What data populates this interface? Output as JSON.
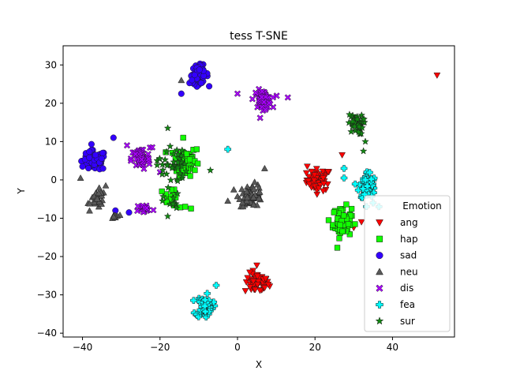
{
  "chart_data": {
    "type": "scatter",
    "title": "tess T-SNE",
    "xlabel": "X",
    "ylabel": "Y",
    "xlim": [
      -45,
      56
    ],
    "ylim": [
      -41,
      35
    ],
    "xticks": [
      -40,
      -20,
      0,
      20,
      40
    ],
    "yticks": [
      -40,
      -30,
      -20,
      -10,
      0,
      10,
      20,
      30
    ],
    "grid": false,
    "legend": {
      "title": "Emotion",
      "placement": "lower-right"
    },
    "series": [
      {
        "name": "ang",
        "marker": "triangle-down",
        "color": "#ff0000",
        "clusters": [
          {
            "center": [
              21,
              0
            ],
            "spread": [
              2.6,
              2.4
            ],
            "count": 60
          },
          {
            "center": [
              5,
              -27
            ],
            "spread": [
              2.6,
              2.2
            ],
            "count": 55
          }
        ],
        "points": [
          [
            51.5,
            27.3
          ],
          [
            5,
            -22.3
          ],
          [
            27,
            6.5
          ],
          [
            30,
            -12.5
          ],
          [
            32,
            -11
          ],
          [
            18,
            3.5
          ]
        ]
      },
      {
        "name": "hap",
        "marker": "square",
        "color": "#11ff00",
        "clusters": [
          {
            "center": [
              -13.5,
              5
            ],
            "spread": [
              2.4,
              3.2
            ],
            "count": 75
          },
          {
            "center": [
              -17,
              -5
            ],
            "spread": [
              1.4,
              1.8
            ],
            "count": 18
          },
          {
            "center": [
              27,
              -11
            ],
            "spread": [
              2.0,
              3.3
            ],
            "count": 75
          }
        ],
        "points": [
          [
            -14,
            11
          ],
          [
            -10.5,
            8
          ],
          [
            -13.5,
            -7
          ],
          [
            -19.5,
            -3
          ],
          [
            -12,
            -7.5
          ]
        ]
      },
      {
        "name": "sad",
        "marker": "circle",
        "color": "#3300ff",
        "clusters": [
          {
            "center": [
              -10,
              27.5
            ],
            "spread": [
              2.0,
              2.0
            ],
            "count": 55
          },
          {
            "center": [
              -37,
              5
            ],
            "spread": [
              2.6,
              2.2
            ],
            "count": 80
          }
        ],
        "points": [
          [
            -14.5,
            22.5
          ],
          [
            -28,
            -8.5
          ],
          [
            -31.5,
            -8
          ],
          [
            -32,
            11
          ],
          [
            -40,
            3.5
          ]
        ]
      },
      {
        "name": "neu",
        "marker": "triangle",
        "color": "#595959",
        "clusters": [
          {
            "center": [
              -36,
              -5
            ],
            "spread": [
              1.6,
              2.0
            ],
            "count": 32
          },
          {
            "center": [
              -31.5,
              -9.5
            ],
            "spread": [
              0.8,
              0.8
            ],
            "count": 10
          },
          {
            "center": [
              3.5,
              -4
            ],
            "spread": [
              2.6,
              2.4
            ],
            "count": 55
          }
        ],
        "points": [
          [
            -40.5,
            0.5
          ],
          [
            -14.5,
            26
          ],
          [
            -34,
            -1.5
          ],
          [
            7,
            3
          ],
          [
            -2.5,
            -5.5
          ]
        ]
      },
      {
        "name": "dis",
        "marker": "x",
        "color": "#aa00ff",
        "clusters": [
          {
            "center": [
              6.5,
              21
            ],
            "spread": [
              1.9,
              2.0
            ],
            "count": 55
          },
          {
            "center": [
              -25,
              5.5
            ],
            "spread": [
              2.0,
              2.4
            ],
            "count": 55
          },
          {
            "center": [
              -24,
              -7.5
            ],
            "spread": [
              1.8,
              1.0
            ],
            "count": 18
          }
        ],
        "points": [
          [
            0,
            22.5
          ],
          [
            13,
            21.5
          ],
          [
            -20,
            2
          ],
          [
            -22,
            8.5
          ],
          [
            -28.5,
            9
          ]
        ]
      },
      {
        "name": "fea",
        "marker": "plus",
        "color": "#00ffff",
        "clusters": [
          {
            "center": [
              33.5,
              -1.5
            ],
            "spread": [
              1.8,
              3.2
            ],
            "count": 60
          },
          {
            "center": [
              -8.5,
              -33
            ],
            "spread": [
              1.8,
              2.4
            ],
            "count": 55
          }
        ],
        "points": [
          [
            27.5,
            3
          ],
          [
            27.5,
            0.5
          ],
          [
            -5.5,
            -27.5
          ],
          [
            -2.5,
            8
          ],
          [
            36.5,
            -7
          ],
          [
            35,
            -6
          ]
        ]
      },
      {
        "name": "sur",
        "marker": "star",
        "color": "#118811",
        "clusters": [
          {
            "center": [
              30.5,
              14.5
            ],
            "spread": [
              1.6,
              2.2
            ],
            "count": 40
          },
          {
            "center": [
              -17,
              4
            ],
            "spread": [
              3.2,
              4.5
            ],
            "count": 38
          },
          {
            "center": [
              -17,
              -6
            ],
            "spread": [
              1.8,
              2.0
            ],
            "count": 10
          }
        ],
        "points": [
          [
            33,
            10
          ],
          [
            32.5,
            7.5
          ],
          [
            -18,
            13.5
          ],
          [
            -18,
            -9.5
          ],
          [
            -7,
            2.5
          ]
        ]
      }
    ]
  }
}
